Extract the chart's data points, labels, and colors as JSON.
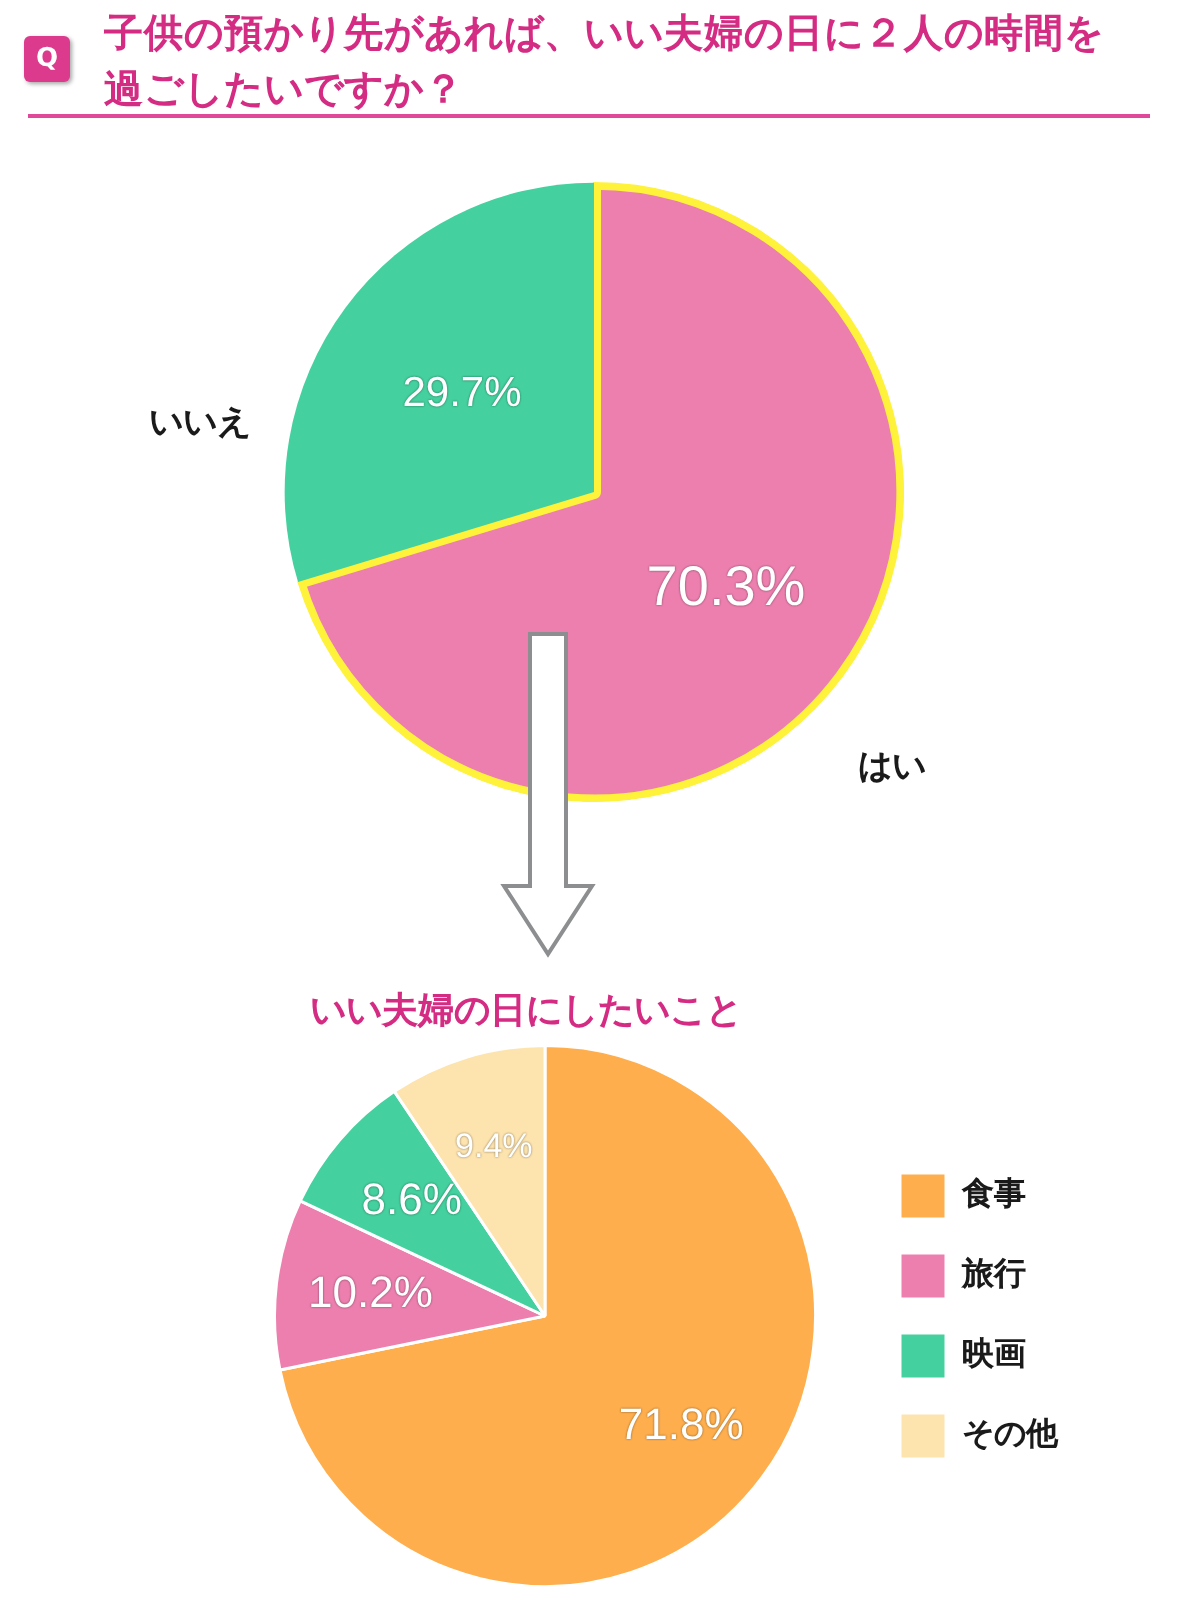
{
  "chart_data": [
    {
      "type": "pie",
      "title": "子供の預かり先があれば、いい夫婦の日に２人の時間を過ごしたいですか？",
      "annotations": [
        "Q"
      ],
      "categories": [
        "はい",
        "いいえ"
      ],
      "values": [
        70.3,
        29.7
      ],
      "colors": [
        "#ec7fae",
        "#44d09f"
      ],
      "value_labels": [
        "70.3%",
        "29.7%"
      ],
      "legend": false
    },
    {
      "type": "pie",
      "title": "いい夫婦の日にしたいこと",
      "categories": [
        "食事",
        "旅行",
        "映画",
        "その他"
      ],
      "values": [
        71.8,
        10.2,
        8.6,
        9.4
      ],
      "colors": [
        "#feae4c",
        "#ec7fae",
        "#44d09f",
        "#fde3ae"
      ],
      "value_labels": [
        "71.8%",
        "10.2%",
        "8.6%",
        "9.4%"
      ],
      "legend": "right"
    }
  ]
}
